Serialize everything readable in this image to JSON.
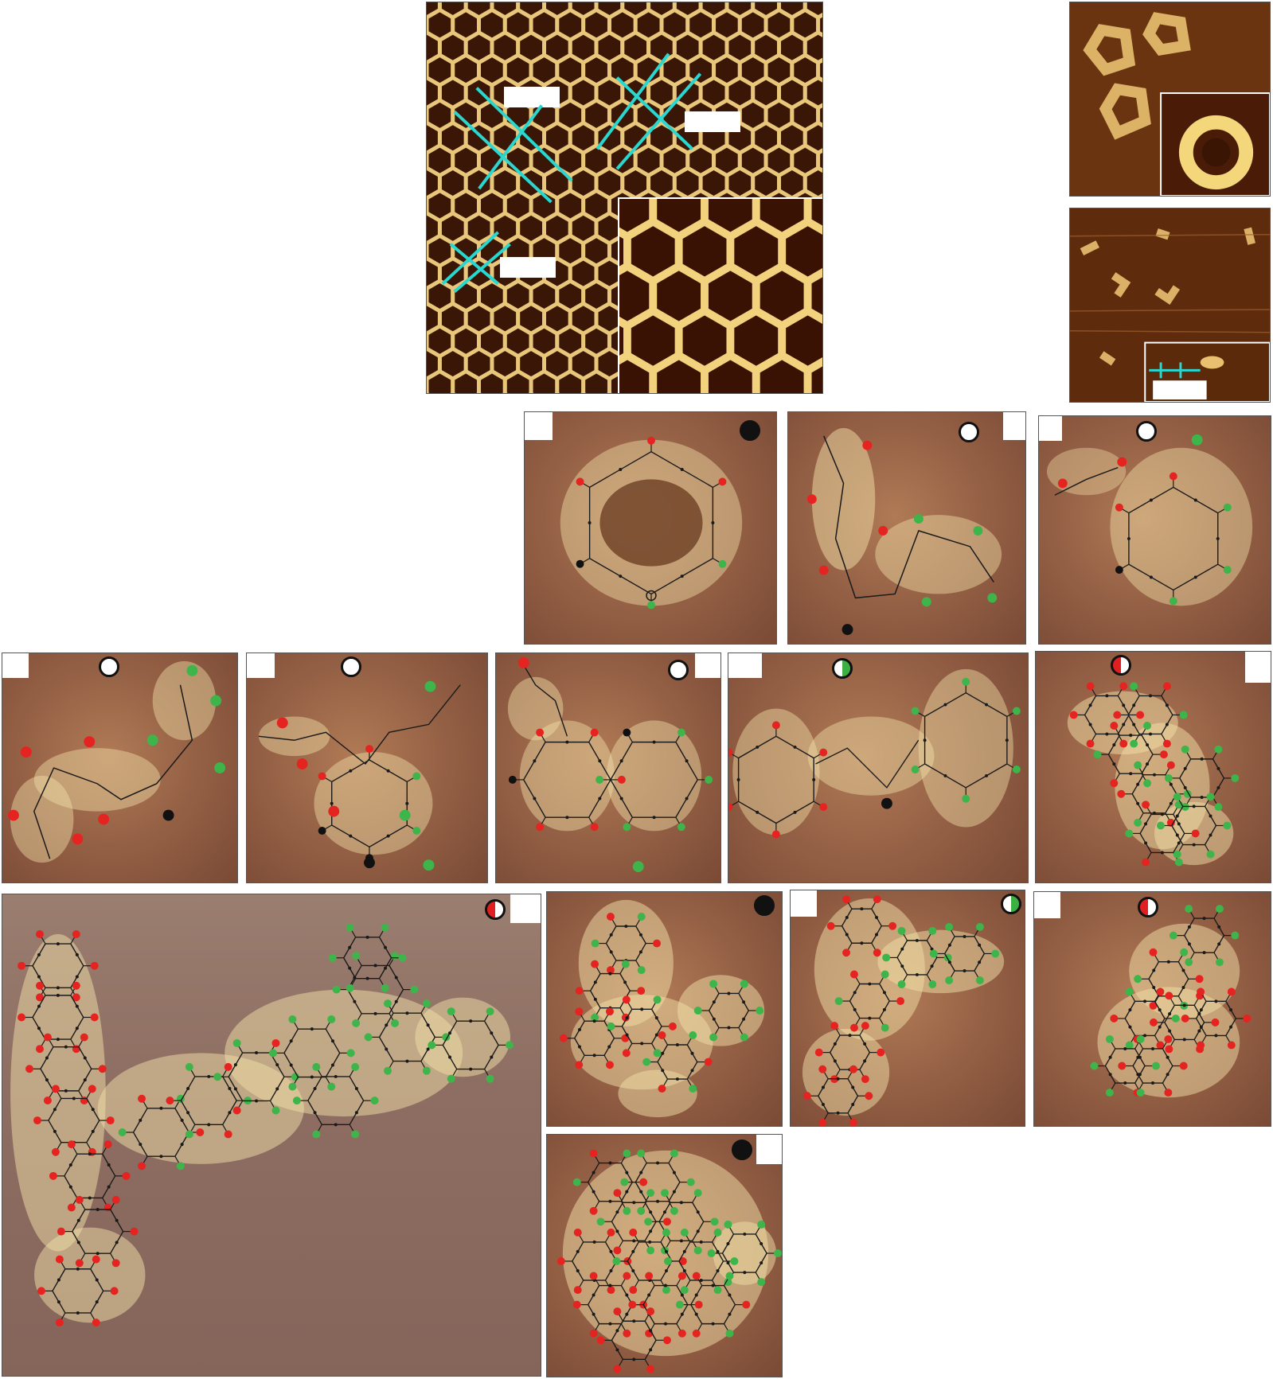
{
  "figure": {
    "panels": [
      {
        "id": "honeycomb-lattice",
        "marker": ""
      },
      {
        "id": "single-rings",
        "marker": ""
      },
      {
        "id": "fragments",
        "marker": ""
      },
      {
        "id": "hexagon-closed",
        "marker": "black"
      },
      {
        "id": "chain-open-1",
        "marker": "white"
      },
      {
        "id": "ring-open-2",
        "marker": "white"
      },
      {
        "id": "chain-open-3",
        "marker": "white"
      },
      {
        "id": "ring-open-4",
        "marker": "white"
      },
      {
        "id": "double-ring-5",
        "marker": "white"
      },
      {
        "id": "double-ring-6",
        "marker": "half-green"
      },
      {
        "id": "cluster-7",
        "marker": "half-red"
      },
      {
        "id": "large-cluster-8",
        "marker": "half-red"
      },
      {
        "id": "cluster-9",
        "marker": "black"
      },
      {
        "id": "cluster-10",
        "marker": "half-green"
      },
      {
        "id": "cluster-11",
        "marker": "half-red"
      },
      {
        "id": "cluster-12",
        "marker": "black"
      }
    ],
    "colors": {
      "red_node": "#e52421",
      "green_node": "#3db54a",
      "black_node": "#111111",
      "cyan_line": "#29d7d0",
      "strand": "#1a1a1a"
    }
  }
}
